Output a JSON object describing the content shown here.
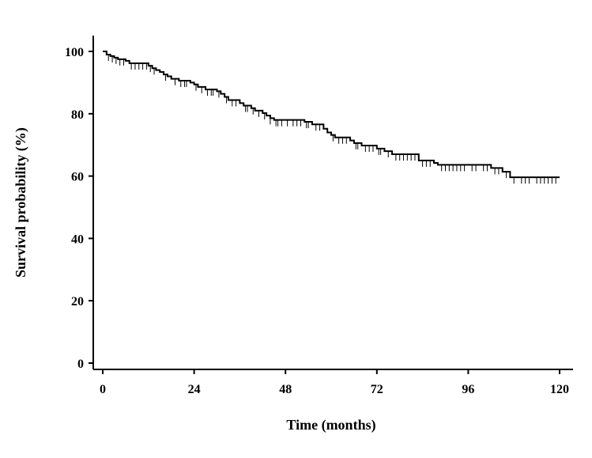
{
  "chart_data": {
    "type": "line",
    "subtype": "kaplan-meier-step",
    "title": "",
    "xlabel": "Time (months)",
    "ylabel": "Survival probability (%)",
    "xlim": [
      0,
      120
    ],
    "ylim": [
      0,
      100
    ],
    "xticks": [
      0,
      24,
      48,
      72,
      96,
      120
    ],
    "yticks": [
      0,
      20,
      40,
      60,
      80,
      100
    ],
    "grid": false,
    "legend": "none",
    "series": [
      {
        "name": "",
        "steps": [
          [
            0,
            100
          ],
          [
            1,
            99
          ],
          [
            2,
            98.5
          ],
          [
            3,
            98
          ],
          [
            4,
            97.5
          ],
          [
            6,
            97
          ],
          [
            7,
            96.2
          ],
          [
            12,
            95.4
          ],
          [
            13,
            94.6
          ],
          [
            14,
            94
          ],
          [
            15,
            93.4
          ],
          [
            16,
            92.6
          ],
          [
            17,
            92
          ],
          [
            18,
            91.2
          ],
          [
            20,
            90.6
          ],
          [
            23,
            90
          ],
          [
            24,
            89.4
          ],
          [
            25,
            88.6
          ],
          [
            27,
            87.8
          ],
          [
            30,
            87.2
          ],
          [
            31,
            86.4
          ],
          [
            32,
            85.4
          ],
          [
            33,
            84.4
          ],
          [
            36,
            83.4
          ],
          [
            37,
            82.6
          ],
          [
            39,
            81.8
          ],
          [
            40,
            81
          ],
          [
            42,
            80.2
          ],
          [
            43,
            79.4
          ],
          [
            44,
            78.6
          ],
          [
            45,
            78
          ],
          [
            53,
            77.4
          ],
          [
            55,
            76.6
          ],
          [
            58,
            75.2
          ],
          [
            59,
            74
          ],
          [
            60,
            73.2
          ],
          [
            61,
            72.4
          ],
          [
            65,
            71.4
          ],
          [
            66,
            70.6
          ],
          [
            68,
            69.8
          ],
          [
            72,
            68.8
          ],
          [
            74,
            68
          ],
          [
            76,
            67
          ],
          [
            83,
            65
          ],
          [
            87,
            64.2
          ],
          [
            88,
            63.6
          ],
          [
            102,
            62.6
          ],
          [
            105,
            61.4
          ],
          [
            107,
            59.6
          ],
          [
            120,
            59.6
          ]
        ],
        "censored": [
          1.5,
          2.5,
          3.5,
          4.5,
          5.5,
          7.5,
          8.5,
          9.5,
          10.5,
          11.5,
          12.5,
          13.5,
          16.5,
          19,
          20.5,
          21.5,
          22,
          24.5,
          26,
          27.5,
          28.5,
          29,
          30.5,
          32.5,
          34,
          35,
          37.5,
          38,
          39.5,
          41,
          42.5,
          44,
          45.5,
          46,
          47,
          48.5,
          50,
          51,
          52,
          53.5,
          54,
          56,
          57,
          60.5,
          62,
          63,
          64,
          66.5,
          67,
          69,
          70,
          71,
          72.5,
          73,
          75,
          77,
          78,
          79,
          80,
          81,
          82,
          84,
          85,
          86,
          89,
          90,
          91,
          92,
          93,
          94,
          95,
          97,
          98,
          100,
          101,
          103,
          104,
          106,
          108,
          110,
          111,
          112,
          114,
          115,
          116,
          117,
          118,
          119
        ]
      }
    ]
  }
}
